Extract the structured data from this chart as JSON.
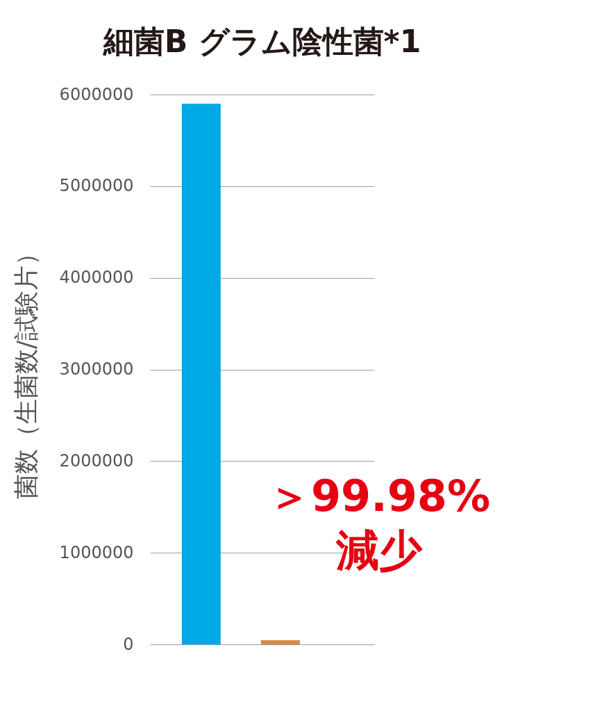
{
  "chart_data": {
    "type": "bar",
    "title": "細菌B グラム陰性菌*1",
    "ylabel": "菌数（生菌数/試験片）",
    "categories": [
      null,
      null
    ],
    "values": [
      5900000,
      45000
    ],
    "colors": [
      "#00a8e4",
      "#d78a45"
    ],
    "ylim": [
      0,
      6000000
    ],
    "yticks": [
      0,
      1000000,
      2000000,
      3000000,
      4000000,
      5000000,
      6000000
    ],
    "grid": "y",
    "tick_labels": "y",
    "annotations": [
      "＞99.98%\n減少"
    ]
  }
}
